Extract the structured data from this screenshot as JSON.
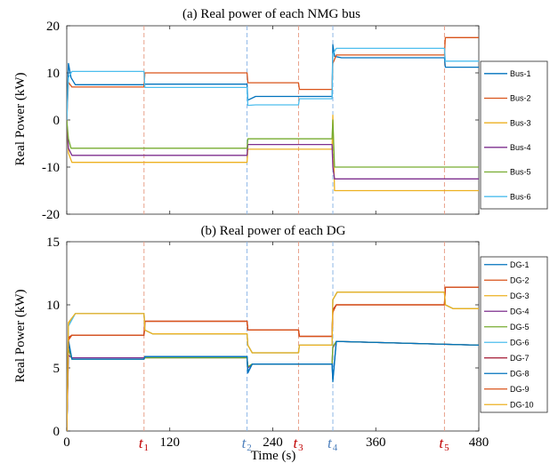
{
  "chart_data": [
    {
      "type": "line",
      "title": "(a) Real power of each NMG bus",
      "xlabel": "",
      "ylabel": "Real Power (kW)",
      "xlim": [
        0,
        480
      ],
      "ylim": [
        -20,
        20
      ],
      "yticks": [
        -20,
        -10,
        0,
        10,
        20
      ],
      "xticks": [
        0,
        120,
        240,
        360,
        480
      ],
      "grid": false,
      "legend_position": "right",
      "series": [
        {
          "name": "Bus-1",
          "color": "#0072BD",
          "x": [
            0,
            2,
            5,
            10,
            90,
            91,
            210,
            211,
            220,
            309,
            310,
            312,
            320,
            440,
            441,
            480
          ],
          "y": [
            0,
            12,
            9,
            7.5,
            7.5,
            7.6,
            7.6,
            4.2,
            5.0,
            5.0,
            16,
            13.5,
            13.2,
            13.2,
            11.2,
            11.2
          ]
        },
        {
          "name": "Bus-2",
          "color": "#D95319",
          "x": [
            0,
            2,
            6,
            90,
            91,
            210,
            211,
            270,
            271,
            309,
            310,
            314,
            440,
            441,
            480
          ],
          "y": [
            0,
            8,
            7.0,
            7.0,
            10.0,
            10.0,
            7.9,
            7.9,
            6.5,
            6.5,
            12,
            13.8,
            13.8,
            17.5,
            17.5
          ]
        },
        {
          "name": "Bus-3",
          "color": "#EDB120",
          "x": [
            0,
            2,
            6,
            210,
            211,
            309,
            310,
            312,
            480
          ],
          "y": [
            0,
            -7,
            -9.0,
            -9.0,
            -6.2,
            -6.2,
            1,
            -15.0,
            -15.0
          ]
        },
        {
          "name": "Bus-4",
          "color": "#7E2F8E",
          "x": [
            0,
            2,
            6,
            210,
            211,
            309,
            310,
            312,
            480
          ],
          "y": [
            0,
            -6,
            -7.5,
            -7.5,
            -5.2,
            -5.2,
            -10,
            -12.5,
            -12.5
          ]
        },
        {
          "name": "Bus-5",
          "color": "#77AC30",
          "x": [
            0,
            2,
            5,
            210,
            211,
            309,
            310,
            312,
            480
          ],
          "y": [
            0,
            -4,
            -6.0,
            -6.0,
            -4.0,
            -4.0,
            0,
            -10.0,
            -10.0
          ]
        },
        {
          "name": "Bus-6",
          "color": "#4DBEEE",
          "x": [
            0,
            2,
            6,
            90,
            91,
            210,
            211,
            220,
            270,
            271,
            309,
            310,
            314,
            440,
            441,
            480
          ],
          "y": [
            0,
            9,
            10.3,
            10.3,
            6.9,
            6.9,
            3.1,
            3.2,
            3.2,
            4.5,
            4.5,
            14,
            15.2,
            15.2,
            12.5,
            12.5
          ]
        }
      ],
      "vlines": [
        {
          "x": 90,
          "color": "#E8A08A",
          "label": "t1"
        },
        {
          "x": 210,
          "color": "#8FB8E6",
          "label": "t2"
        },
        {
          "x": 270,
          "color": "#E8A08A",
          "label": "t3"
        },
        {
          "x": 310,
          "color": "#8FB8E6",
          "label": "t4"
        },
        {
          "x": 440,
          "color": "#E8A08A",
          "label": "t5"
        }
      ]
    },
    {
      "type": "line",
      "title": "(b) Real power of each DG",
      "xlabel": "Time (s)",
      "ylabel": "Real Power (kW)",
      "xlim": [
        0,
        480
      ],
      "ylim": [
        0,
        15
      ],
      "yticks": [
        0,
        5,
        10,
        15
      ],
      "xticks": [
        0,
        120,
        240,
        360,
        480
      ],
      "grid": false,
      "legend_position": "right",
      "series": [
        {
          "name": "DG-1",
          "color": "#0072BD",
          "x": [
            0,
            2,
            6,
            90,
            91,
            210,
            211,
            216,
            309,
            310,
            314,
            480
          ],
          "y": [
            0,
            7,
            5.7,
            5.7,
            5.9,
            5.9,
            4.6,
            5.3,
            5.3,
            3.9,
            7.1,
            6.8
          ]
        },
        {
          "name": "DG-2",
          "color": "#D95319",
          "x": [
            0,
            2,
            6,
            90,
            91,
            210,
            211,
            270,
            271,
            309,
            310,
            314,
            440,
            441,
            480
          ],
          "y": [
            0,
            7.2,
            7.6,
            7.6,
            8.7,
            8.7,
            8.0,
            8.0,
            7.5,
            7.5,
            9.5,
            10.0,
            10.0,
            11.4,
            11.4
          ]
        },
        {
          "name": "DG-3",
          "color": "#EDB120",
          "x": [
            0,
            2,
            10,
            90,
            91,
            100,
            210,
            211,
            216,
            270,
            271,
            309,
            310,
            315,
            440,
            441,
            450,
            480
          ],
          "y": [
            0,
            8.5,
            9.3,
            9.3,
            8.0,
            7.7,
            7.7,
            6.8,
            6.2,
            6.2,
            6.8,
            6.8,
            10.4,
            11.0,
            11.0,
            10.0,
            9.7,
            9.7
          ]
        },
        {
          "name": "DG-4",
          "color": "#7E2F8E",
          "x": [
            0,
            2,
            6,
            90,
            91,
            210,
            211,
            216,
            309,
            310,
            314,
            480
          ],
          "y": [
            0,
            6,
            5.8,
            5.8,
            5.8,
            5.8,
            5.0,
            5.3,
            5.3,
            6.6,
            7.1,
            6.8
          ]
        },
        {
          "name": "DG-5",
          "color": "#77AC30",
          "x": [
            0,
            2,
            6,
            90,
            91,
            210,
            211,
            216,
            309,
            310,
            314,
            480
          ],
          "y": [
            0,
            6.5,
            5.7,
            5.7,
            5.8,
            5.8,
            5.1,
            5.3,
            5.3,
            6.7,
            7.1,
            6.8
          ]
        },
        {
          "name": "DG-6",
          "color": "#4DBEEE",
          "x": [
            0,
            2,
            10,
            90,
            91,
            100,
            210,
            211,
            216,
            270,
            271,
            309,
            310,
            315,
            440,
            441,
            450,
            480
          ],
          "y": [
            0,
            8.3,
            9.3,
            9.3,
            8.0,
            7.7,
            7.7,
            6.8,
            6.2,
            6.2,
            6.8,
            6.8,
            10.4,
            11.0,
            11.0,
            10.0,
            9.7,
            9.7
          ]
        },
        {
          "name": "DG-7",
          "color": "#A2142F",
          "x": [
            0,
            2,
            6,
            90,
            91,
            210,
            211,
            270,
            271,
            309,
            310,
            314,
            440,
            441,
            480
          ],
          "y": [
            0,
            7.4,
            7.6,
            7.6,
            8.7,
            8.7,
            8.0,
            8.0,
            7.5,
            7.5,
            9.6,
            10.0,
            10.0,
            11.4,
            11.4
          ]
        },
        {
          "name": "DG-8",
          "color": "#0072BD",
          "x": [
            0,
            2,
            6,
            90,
            91,
            210,
            211,
            216,
            309,
            310,
            314,
            480
          ],
          "y": [
            0,
            7.2,
            5.7,
            5.7,
            5.9,
            5.9,
            4.7,
            5.3,
            5.3,
            4.1,
            7.1,
            6.8
          ]
        },
        {
          "name": "DG-9",
          "color": "#D95319",
          "x": [
            0,
            2,
            6,
            90,
            91,
            210,
            211,
            270,
            271,
            309,
            310,
            314,
            440,
            441,
            480
          ],
          "y": [
            0,
            7.3,
            7.6,
            7.6,
            8.7,
            8.7,
            8.0,
            8.0,
            7.5,
            7.5,
            9.4,
            10.0,
            10.0,
            11.4,
            11.4
          ]
        },
        {
          "name": "DG-10",
          "color": "#EDB120",
          "x": [
            0,
            2,
            10,
            90,
            91,
            100,
            210,
            211,
            216,
            270,
            271,
            309,
            310,
            315,
            440,
            441,
            450,
            480
          ],
          "y": [
            0,
            8.6,
            9.3,
            9.3,
            8.0,
            7.7,
            7.7,
            6.8,
            6.2,
            6.2,
            6.8,
            6.8,
            10.4,
            11.0,
            11.0,
            10.0,
            9.7,
            9.7
          ]
        }
      ],
      "vlines": [
        {
          "x": 90,
          "color": "#E8A08A",
          "label": "t1"
        },
        {
          "x": 210,
          "color": "#8FB8E6",
          "label": "t2"
        },
        {
          "x": 270,
          "color": "#E8A08A",
          "label": "t3"
        },
        {
          "x": 310,
          "color": "#8FB8E6",
          "label": "t4"
        },
        {
          "x": 440,
          "color": "#E8A08A",
          "label": "t5"
        }
      ]
    }
  ],
  "markers": [
    {
      "base": "t",
      "sub": "1",
      "x": 90,
      "color": "#C00000"
    },
    {
      "base": "t",
      "sub": "2",
      "x": 210,
      "color": "#4F81BD"
    },
    {
      "base": "t",
      "sub": "3",
      "x": 270,
      "color": "#C00000"
    },
    {
      "base": "t",
      "sub": "4",
      "x": 310,
      "color": "#4F81BD"
    },
    {
      "base": "t",
      "sub": "5",
      "x": 440,
      "color": "#C00000"
    }
  ]
}
